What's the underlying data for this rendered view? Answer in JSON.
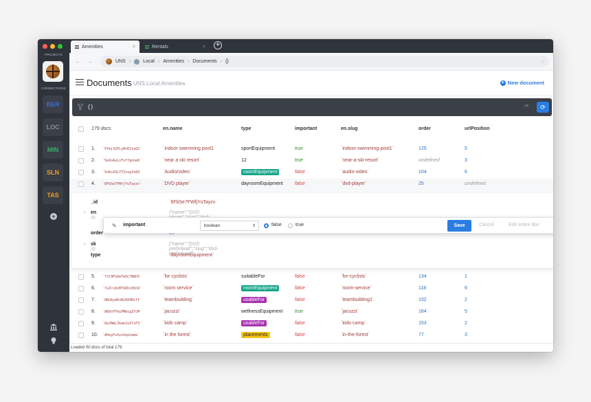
{
  "sidebar": {
    "projects_label": "PROJECTS",
    "connections_label": "CONNECTIONS",
    "connections": [
      {
        "label": "BER",
        "color": "#3b6fd8"
      },
      {
        "label": "LOC",
        "color": "#8c9198"
      },
      {
        "label": "MIN",
        "color": "#2fb463"
      },
      {
        "label": "SLN",
        "color": "#f0a020"
      },
      {
        "label": "TAS",
        "color": "#f59a22"
      }
    ]
  },
  "tabs": [
    {
      "label": "Amenities",
      "active": true
    },
    {
      "label": "Rentals",
      "active": false
    }
  ],
  "breadcrumb": [
    "UNS",
    "Local",
    "Amenities",
    "Documents",
    "{}"
  ],
  "header": {
    "title": "Documents",
    "subtitle": "UNS.Local.Amenities",
    "new_document": "New document"
  },
  "query": "{}",
  "columns": {
    "count": "179 docs",
    "name": "en.name",
    "type": "type",
    "important": "important",
    "slug": "en.slug",
    "order": "order",
    "url": "urlPosition"
  },
  "rows": [
    {
      "n": "1.",
      "id": "`5Ymj32FLyHnE2zyQ2`",
      "name": "`indoor swimming pool1`",
      "type": "sportEquipment",
      "badge": "",
      "important": "true",
      "slug": "`indoor-swimming-pool1`",
      "order": "125",
      "url": "5"
    },
    {
      "n": "2.",
      "id": "`5eXoAyLiFvffgnne6`",
      "name": "`near a ski resort`",
      "type": "12",
      "badge": "",
      "important": "true",
      "slug": "`near-a-ski-resort`",
      "order": "undefined",
      "url": "3"
    },
    {
      "n": "3.",
      "id": "`5nKsXXLYTZzvgfk83`",
      "name": "`Audio/video`",
      "type": "roomEquipment",
      "badge": "teal",
      "important": "false",
      "slug": "`audio-video`",
      "order": "104",
      "url": "6"
    },
    {
      "n": "4.",
      "id": "`6FbSe7FWfjYuTayzv`",
      "name": "`DVD player`",
      "type": "dayroomEquipment",
      "badge": "",
      "important": "false",
      "slug": "`dvd-player`",
      "order": "25",
      "url": "undefined"
    },
    {
      "n": "5.",
      "id": "`7tC9PSAeTmSC7NAh5`",
      "name": "`for cyclists`",
      "type": "suitableFor",
      "badge": "",
      "important": "false",
      "slug": "`for-cyclists`",
      "order": "134",
      "url": "1"
    },
    {
      "n": "6.",
      "id": "`7uZrvQzBTkRhcQ5n9`",
      "name": "`room service`",
      "type": "roomEquipment",
      "badge": "teal",
      "important": "false",
      "slug": "`room-service`",
      "order": "118",
      "url": "6"
    },
    {
      "n": "7.",
      "id": "`8Rn6ymEvBiHX9Biff`",
      "name": "`teambuilding`",
      "type": "usableFor",
      "badge": "purple",
      "important": "false",
      "slug": "`teambuilding1`",
      "order": "152",
      "url": "2"
    },
    {
      "n": "8.",
      "id": "`8RXnYFmiPMmigZfcM`",
      "name": "`jacuzzi`",
      "type": "wellnessEquipment",
      "badge": "",
      "important": "true",
      "slug": "`jacuzzi`",
      "order": "164",
      "url": "5"
    },
    {
      "n": "9.",
      "id": "`8aJNmL3kamJyX7sF3`",
      "name": "`kids camp`",
      "type": "usableFor",
      "badge": "purple",
      "important": "false",
      "slug": "`kids-camp`",
      "order": "153",
      "url": "2"
    },
    {
      "n": "10.",
      "id": "`AHzgYvXzzXqoLbme`",
      "name": "`in the forest`",
      "type": "placements",
      "badge": "yellow",
      "important": "false",
      "slug": "`in-the-forest`",
      "order": "77",
      "url": "3"
    }
  ],
  "detail": {
    "id_key": "_id",
    "id_val": "`6FbSe7FWfjYuTayzv`",
    "en_key": "en",
    "en_count": "{2}",
    "en_val": "{\"name\":\"DVD player\",\"slug\":\"dvd-player\"}",
    "order_key": "order",
    "order_val": "25",
    "sk_key": "sk",
    "sk_count": "{2}",
    "sk_val": "{\"name\":\"DVD prehrávač\",\"slug\":\"dvd-prehravac\"}",
    "type_key": "type",
    "type_val": "`dayroomEquipment`"
  },
  "editor": {
    "key": "important",
    "type": "boolean",
    "opt_false": "false",
    "opt_true": "true",
    "save": "Save",
    "cancel": "Cancel",
    "edit_entire": "Edit entire doc"
  },
  "footer": "Loaded 50 docs of total 179."
}
